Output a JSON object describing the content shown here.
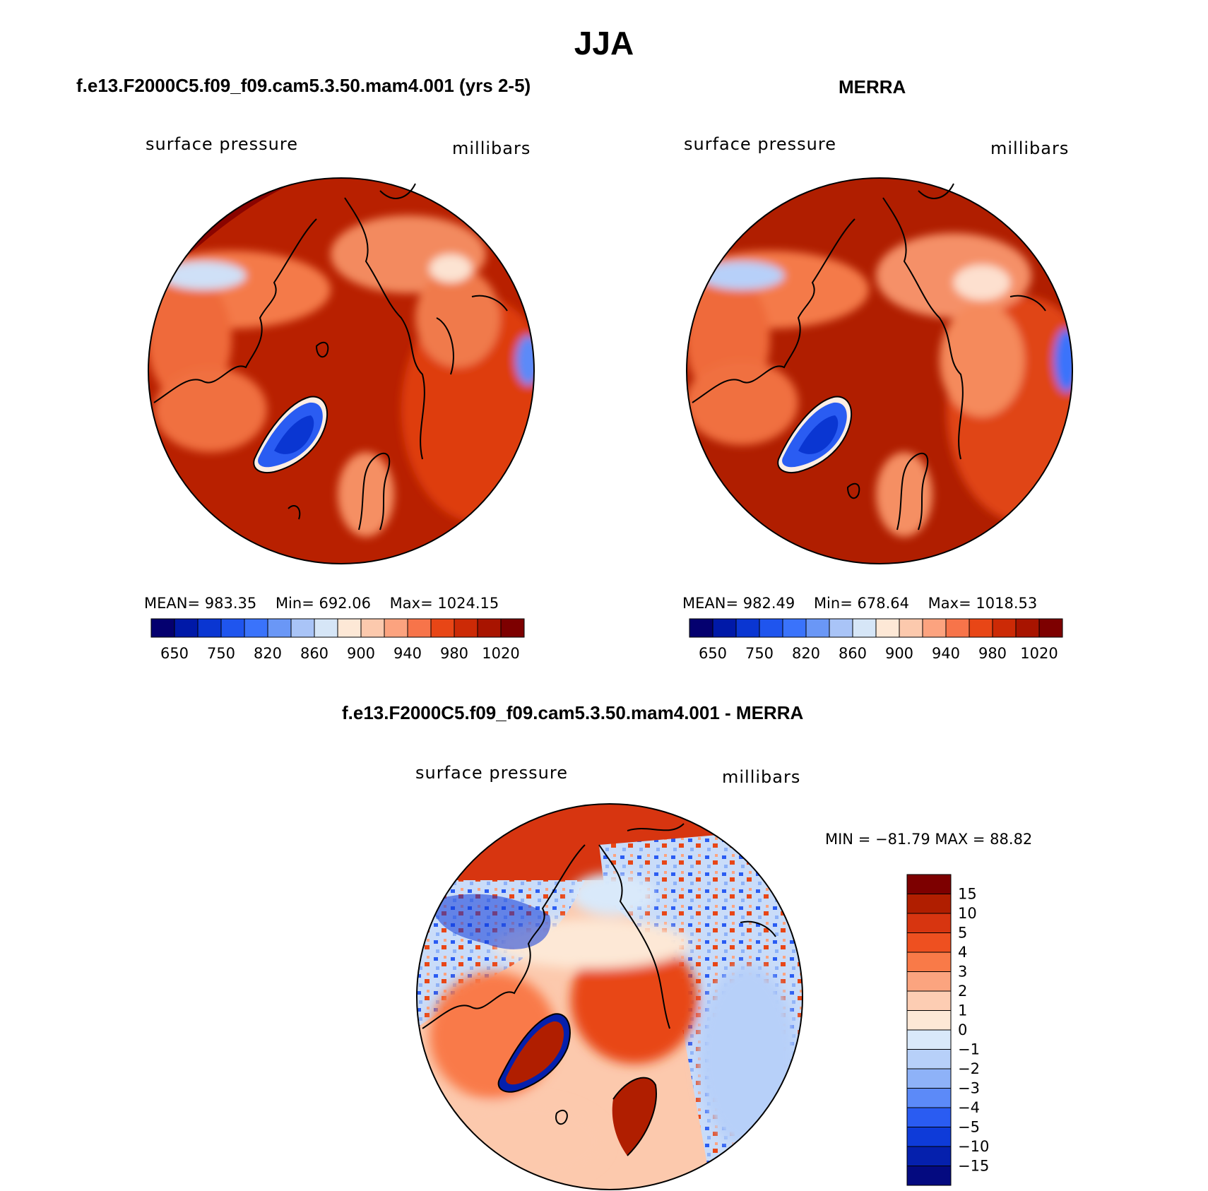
{
  "title": "JJA",
  "panels": [
    {
      "heading": "f.e13.F2000C5.f09_f09.cam5.3.50.mam4.001 (yrs 2-5)",
      "variable": "surface pressure",
      "units": "millibars",
      "stats": {
        "mean_label": "MEAN=",
        "mean": "983.35",
        "min_label": "Min=",
        "min": "692.06",
        "max_label": "Max=",
        "max": "1024.15"
      }
    },
    {
      "heading": "MERRA",
      "variable": "surface pressure",
      "units": "millibars",
      "stats": {
        "mean_label": "MEAN=",
        "mean": "982.49",
        "min_label": "Min=",
        "min": "678.64",
        "max_label": "Max=",
        "max": "1018.53"
      }
    },
    {
      "heading": "f.e13.F2000C5.f09_f09.cam5.3.50.mam4.001 - MERRA",
      "variable": "surface pressure",
      "units": "millibars",
      "stats_line": "MIN = −81.79 MAX =   88.82"
    }
  ],
  "colorbar_top": {
    "colors": [
      "#04006f",
      "#0019a8",
      "#0a36d2",
      "#1f55ee",
      "#3a73fb",
      "#6a97f6",
      "#a9c4f7",
      "#d6e6f7",
      "#fde8d6",
      "#fcc9ad",
      "#fca37f",
      "#f7744a",
      "#e84616",
      "#cc2a06",
      "#a81400",
      "#7d0000"
    ],
    "labels": [
      "650",
      "750",
      "820",
      "860",
      "900",
      "940",
      "980",
      "1020"
    ]
  },
  "colorbar_diff": {
    "colors": [
      "#7d0000",
      "#b01e00",
      "#d73510",
      "#ee5020",
      "#f97a48",
      "#fba47f",
      "#fdcdb3",
      "#fde8d6",
      "#d9e9fa",
      "#b7d0f9",
      "#8eb2f8",
      "#5c8af8",
      "#2a5cf2",
      "#0e3bd9",
      "#0520ad",
      "#040a80"
    ],
    "labels": [
      "15",
      "10",
      "5",
      "4",
      "3",
      "2",
      "1",
      "0",
      "−1",
      "−2",
      "−3",
      "−4",
      "−5",
      "−10",
      "−15"
    ]
  }
}
